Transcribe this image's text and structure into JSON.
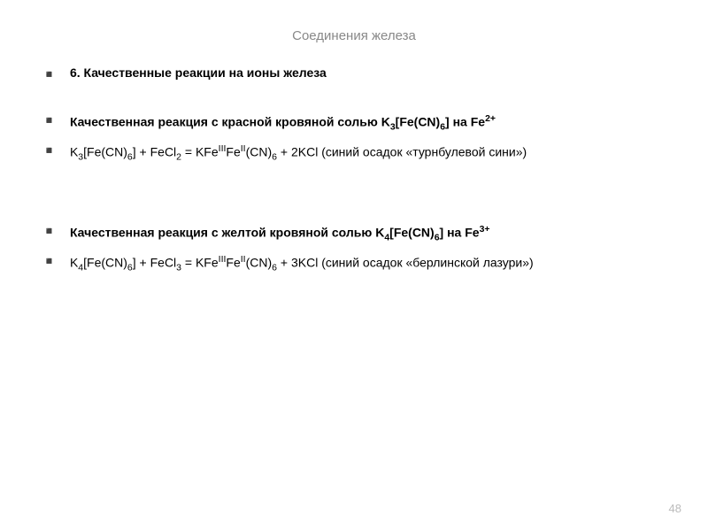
{
  "slide": {
    "title": "Соединения железа",
    "page_number": "48",
    "text_color": "#000000",
    "muted_color": "#888888",
    "page_number_color": "#bbbbbb",
    "background_color": "#ffffff",
    "title_fontsize": 15,
    "body_fontsize": 14
  },
  "bullets": {
    "heading1": "6. Качественные реакции на ионы железа",
    "section1_line1_a": "Качественная реакция с красной кровяной солью K",
    "section1_line1_b": "[Fe(CN)",
    "section1_line1_c": "] на Fe",
    "section1_sub1": "3",
    "section1_sub2": "6",
    "section1_sup1": "2+",
    "section1_eq_a": "K",
    "section1_eq_b": "[Fe(CN)",
    "section1_eq_c": "] + FeCl",
    "section1_eq_d": " = KFe",
    "section1_eq_e": "Fe",
    "section1_eq_f": "(CN)",
    "section1_eq_g": " + 2KCl (синий осадок «турнбулевой сини»)",
    "section1_eq_sub1": "3",
    "section1_eq_sub2": "6",
    "section1_eq_sub3": "2",
    "section1_eq_sup1": "III",
    "section1_eq_sup2": "II",
    "section1_eq_sub4": "6",
    "section2_line1_a": "Качественная реакция с желтой кровяной солью K",
    "section2_line1_b": "[Fe(CN)",
    "section2_line1_c": "] на Fe",
    "section2_sub1": "4",
    "section2_sub2": "6",
    "section2_sup1": "3+",
    "section2_eq_a": "K",
    "section2_eq_b": "[Fe(CN)",
    "section2_eq_c": "] + FeCl",
    "section2_eq_d": " = KFe",
    "section2_eq_e": "Fe",
    "section2_eq_f": "(CN)",
    "section2_eq_g": " + 3KCl (синий осадок «берлинской лазури»)",
    "section2_eq_sub1": "4",
    "section2_eq_sub2": "6",
    "section2_eq_sub3": "3",
    "section2_eq_sup1": "III",
    "section2_eq_sup2": "II",
    "section2_eq_sub4": "6"
  }
}
